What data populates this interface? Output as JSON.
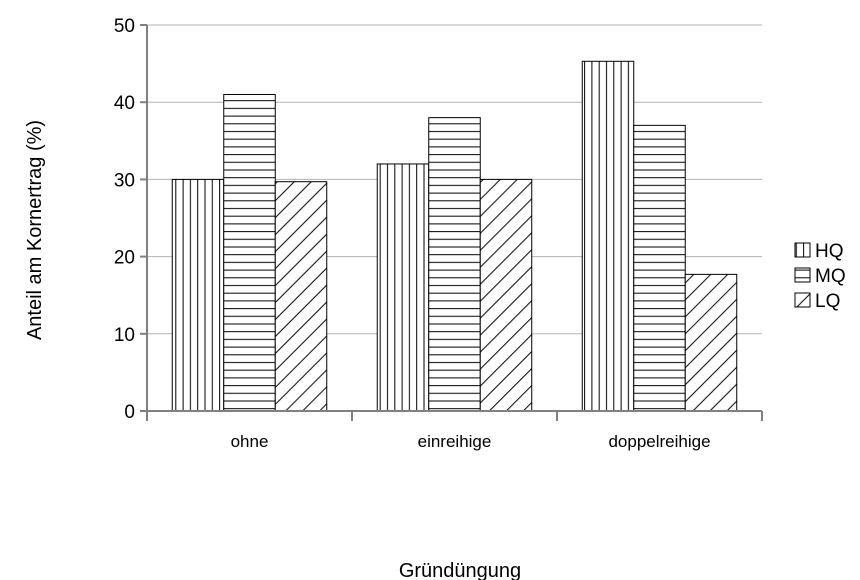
{
  "chart_data": {
    "type": "bar",
    "xlabel": "Gründüngung",
    "ylabel": "Anteil am Kornertrag (%)",
    "categories": [
      "ohne",
      "einreihige",
      "doppelreihige"
    ],
    "series": [
      {
        "name": "HQ",
        "values": [
          30,
          32,
          45.3
        ],
        "pattern": "vertical-lines"
      },
      {
        "name": "MQ",
        "values": [
          41,
          38,
          37
        ],
        "pattern": "horizontal-lines"
      },
      {
        "name": "LQ",
        "values": [
          29.7,
          30,
          17.7
        ],
        "pattern": "diagonal-lines"
      }
    ],
    "ylim": [
      0,
      50
    ],
    "yticks": [
      0,
      10,
      20,
      30,
      40,
      50
    ],
    "grid": true,
    "legend_position": "right",
    "colors": {
      "bar_fill": "#ffffff",
      "stroke": "#000000",
      "grid": "#b3b3b3",
      "axis": "#808080"
    }
  }
}
